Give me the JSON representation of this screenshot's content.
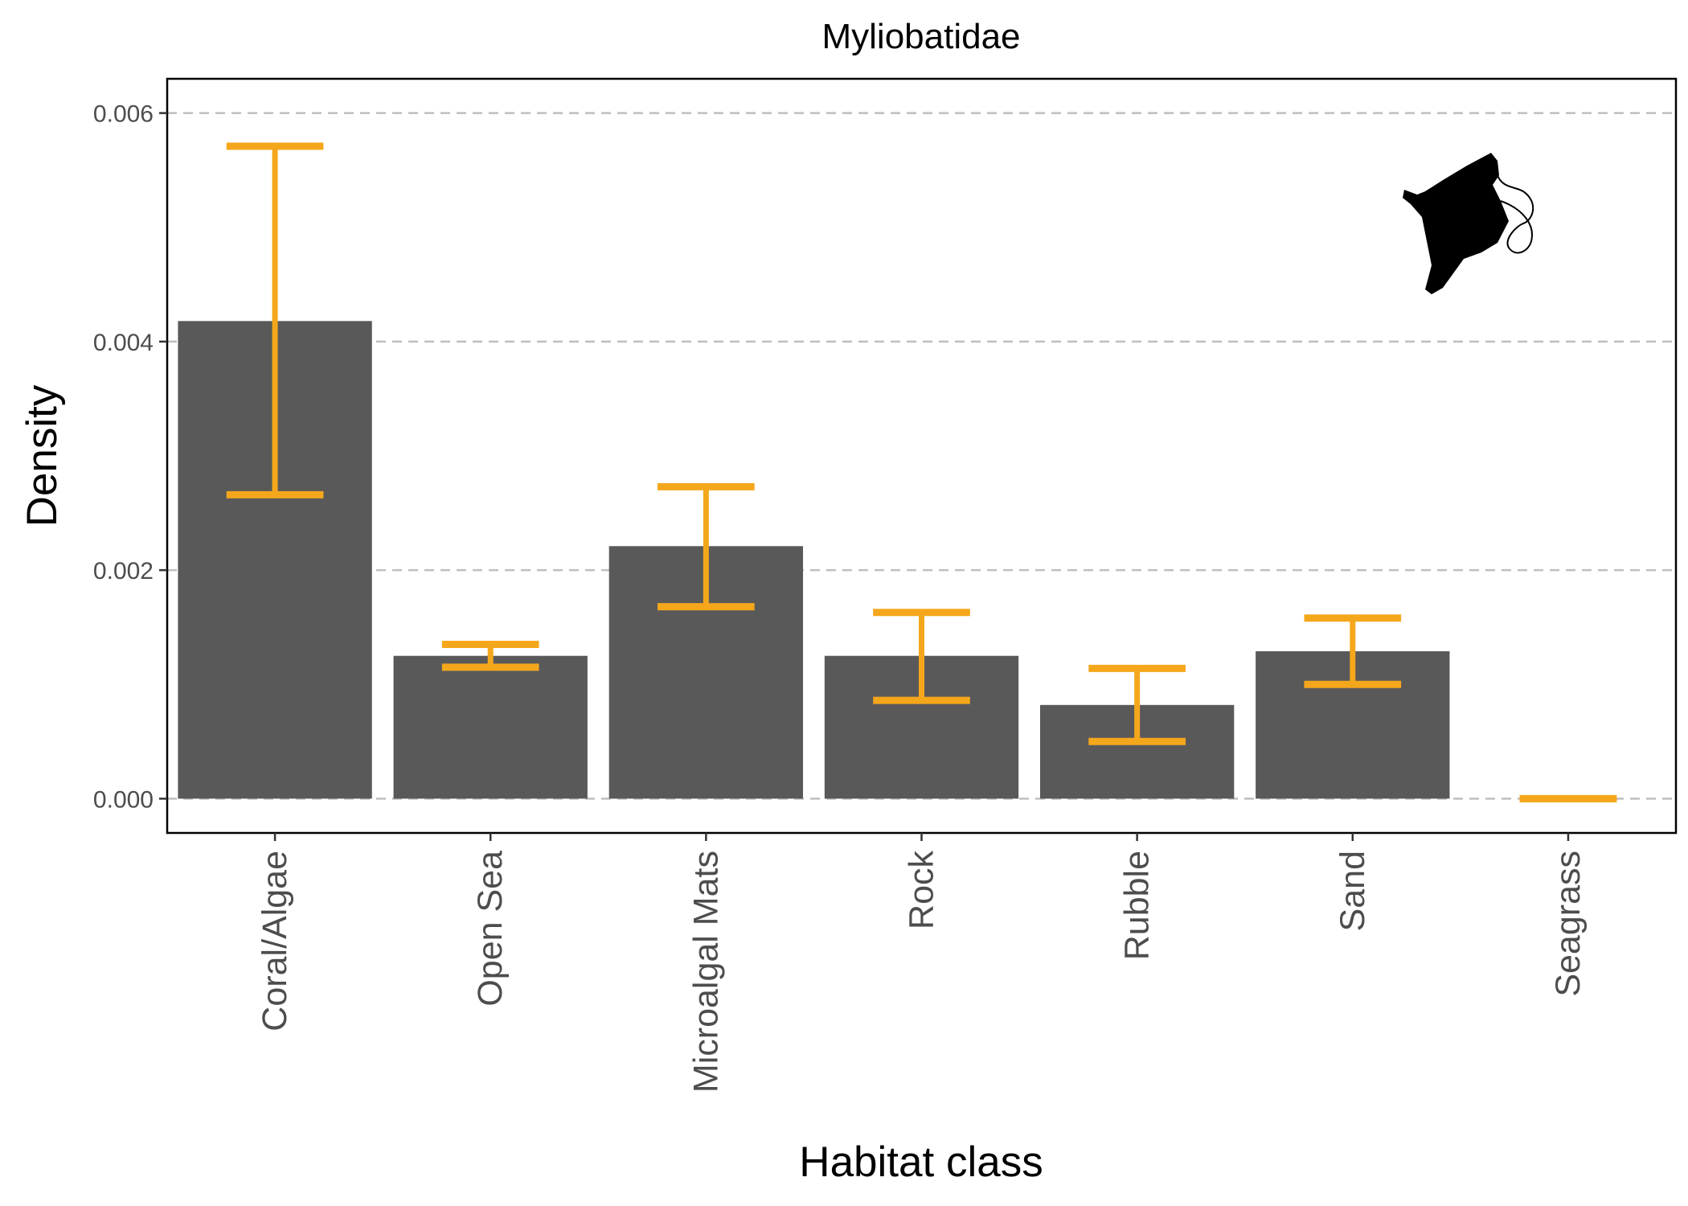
{
  "chart_data": {
    "type": "bar",
    "title": "Myliobatidae",
    "xlabel": "Habitat class",
    "ylabel": "Density",
    "categories": [
      "Coral/Algae",
      "Open Sea",
      "Microalgal Mats",
      "Rock",
      "Rubble",
      "Sand",
      "Seagrass"
    ],
    "values": [
      0.00418,
      0.00125,
      0.00221,
      0.00125,
      0.00082,
      0.00129,
      0.0
    ],
    "error_low": [
      0.00266,
      0.00115,
      0.00168,
      0.00086,
      0.0005,
      0.001,
      0.0
    ],
    "error_high": [
      0.00571,
      0.00135,
      0.00273,
      0.00163,
      0.00114,
      0.00158,
      0.0
    ],
    "ylim": [
      -0.0003,
      0.0063
    ],
    "yticks": [
      0.0,
      0.002,
      0.004,
      0.006
    ],
    "ytick_labels": [
      "0.000",
      "0.002",
      "0.004",
      "0.006"
    ],
    "grid": "dashed horizontal",
    "legend": "none",
    "colors": {
      "bar": "#595959",
      "error": "#F5A71C",
      "grid": "#bfbfbf"
    },
    "icon": "manta-ray-silhouette-icon"
  }
}
